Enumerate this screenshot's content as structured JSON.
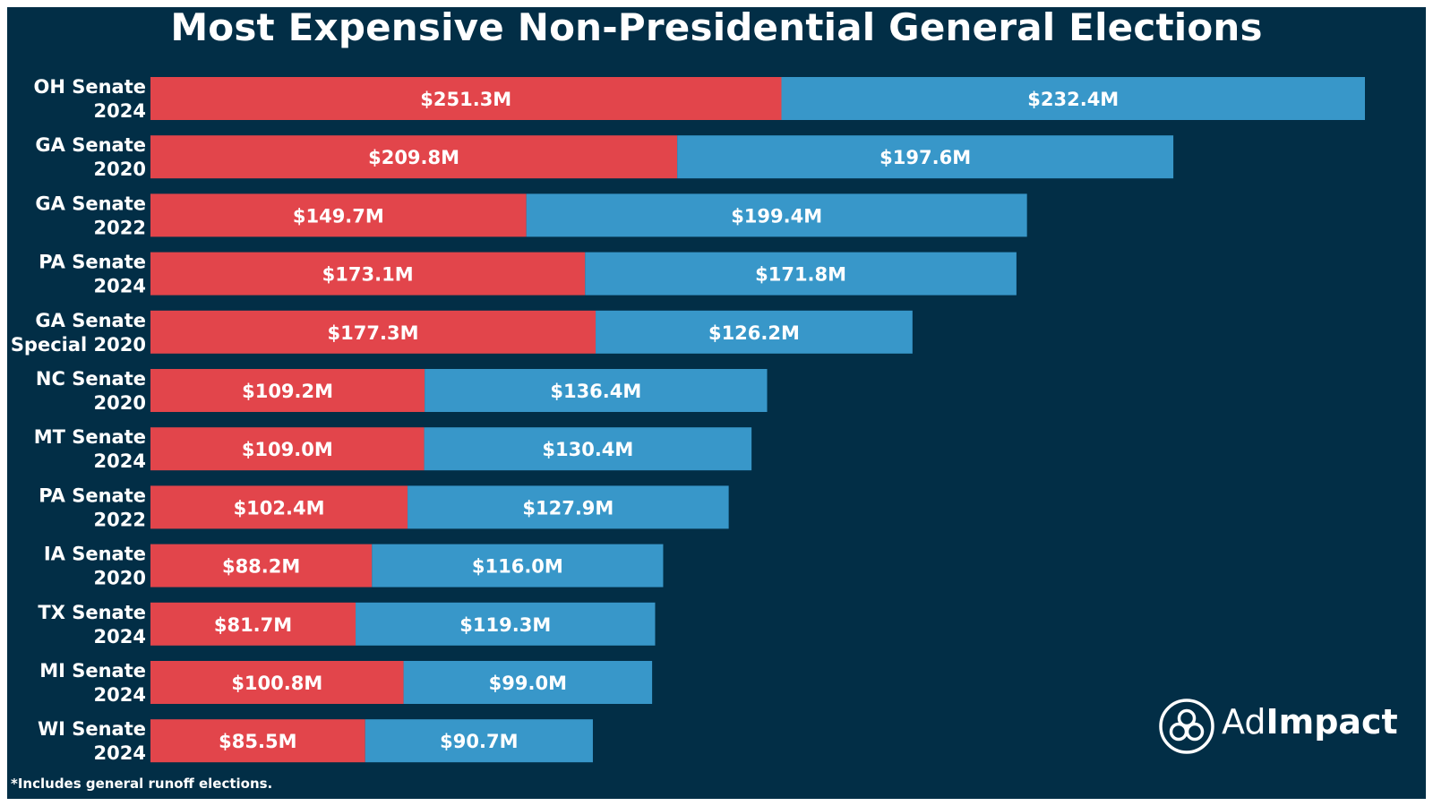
{
  "chart_data": {
    "type": "bar",
    "orientation": "horizontal",
    "stacked": true,
    "title": "Most Expensive Non-Presidential General Elections",
    "categories": [
      [
        "OH Senate",
        "2024"
      ],
      [
        "GA Senate",
        "2020"
      ],
      [
        "GA Senate",
        "2022"
      ],
      [
        "PA Senate",
        "2024"
      ],
      [
        "GA Senate",
        "Special 2020"
      ],
      [
        "NC Senate",
        "2020"
      ],
      [
        "MT Senate",
        "2024"
      ],
      [
        "PA Senate",
        "2022"
      ],
      [
        "IA Senate",
        "2020"
      ],
      [
        "TX Senate",
        "2024"
      ],
      [
        "MI Senate",
        "2024"
      ],
      [
        "WI Senate",
        "2024"
      ]
    ],
    "series": [
      {
        "color": "#E2454B",
        "values": [
          251.3,
          209.8,
          149.7,
          173.1,
          177.3,
          109.2,
          109.0,
          102.4,
          88.2,
          81.7,
          100.8,
          85.5
        ],
        "labels": [
          "$251.3M",
          "$209.8M",
          "$149.7M",
          "$173.1M",
          "$177.3M",
          "$109.2M",
          "$109.0M",
          "$102.4M",
          "$88.2M",
          "$81.7M",
          "$100.8M",
          "$85.5M"
        ]
      },
      {
        "color": "#3897C9",
        "values": [
          232.4,
          197.6,
          199.4,
          171.8,
          126.2,
          136.4,
          130.4,
          127.9,
          116.0,
          119.3,
          99.0,
          90.7
        ],
        "labels": [
          "$232.4M",
          "$197.6M",
          "$199.4M",
          "$171.8M",
          "$126.2M",
          "$136.4M",
          "$130.4M",
          "$127.9M",
          "$116.0M",
          "$119.3M",
          "$99.0M",
          "$90.7M"
        ]
      }
    ],
    "xlim": [
      0,
      483.7
    ],
    "grid": false,
    "legend": "none",
    "background": "#022E46",
    "text_color": "#FFFFFF"
  },
  "footnote": "*Includes general runoff elections.",
  "brand": {
    "name_light": "Ad",
    "name_bold": "Impact",
    "logo_icon": "adimpact-logo-icon"
  }
}
